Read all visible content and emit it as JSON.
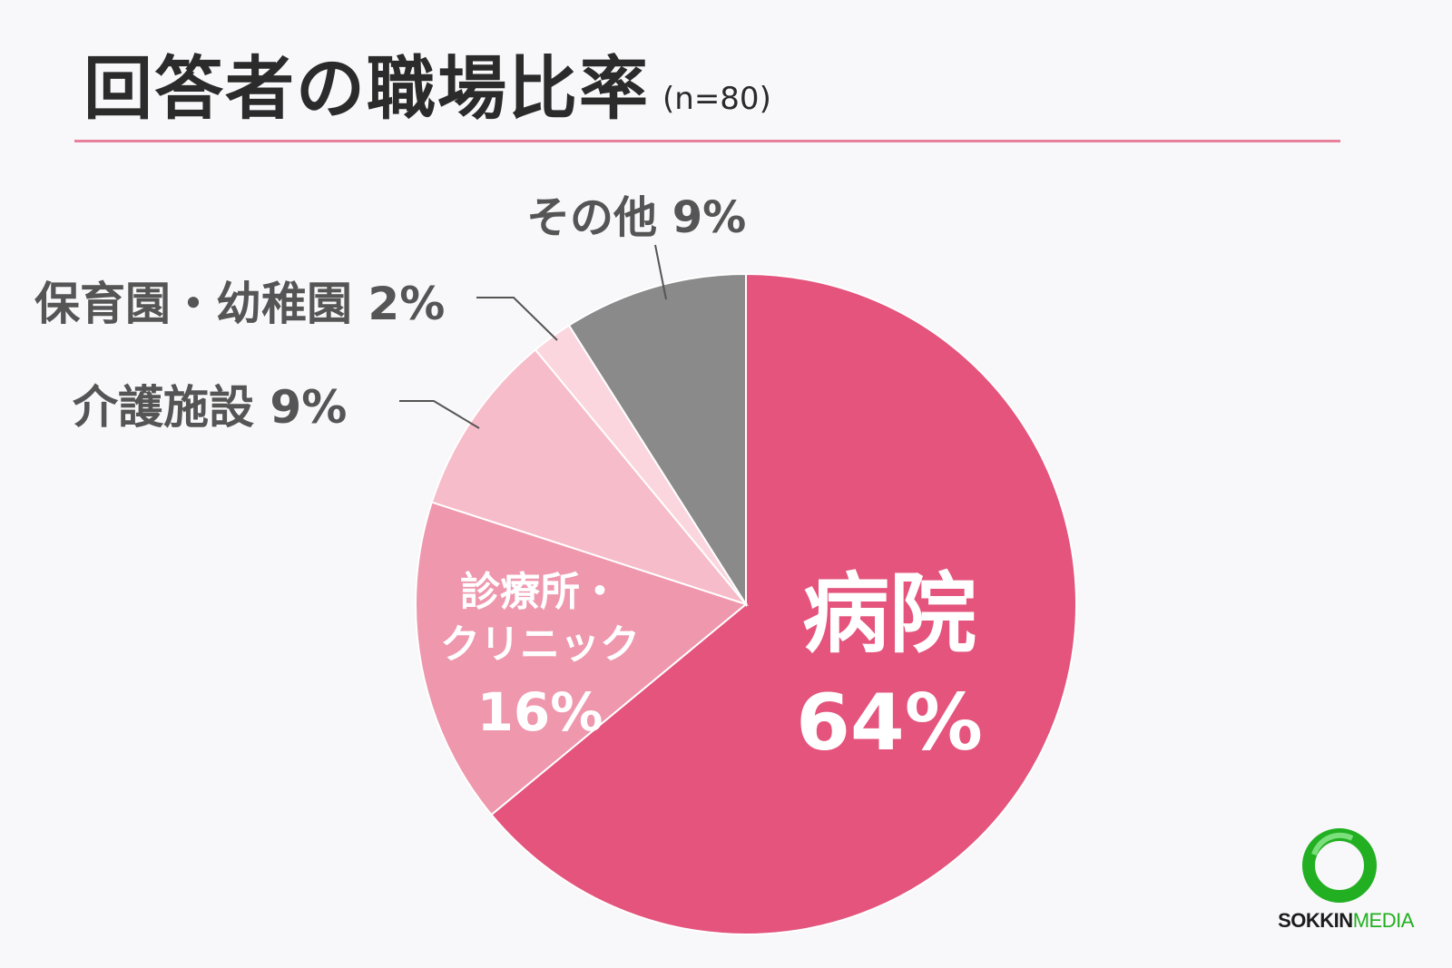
{
  "chart_data": {
    "type": "pie",
    "title": "回答者の職場比率",
    "subtitle": "(n=80)",
    "slices": [
      {
        "lines": [
          "病院",
          "64%"
        ],
        "value": 64,
        "color": "#e4547c"
      },
      {
        "lines": [
          "診療所・",
          "クリニック",
          "16%"
        ],
        "value": 16,
        "color": "#ee97ad"
      },
      {
        "lines": [
          "介護施設 9%"
        ],
        "value": 9,
        "color": "#f7bcc9"
      },
      {
        "lines": [
          "保育園・幼稚園 2%"
        ],
        "value": 2,
        "color": "#fbd6de"
      },
      {
        "lines": [
          "その他 9%"
        ],
        "value": 9,
        "color": "#8a8a8a"
      }
    ]
  },
  "logo": {
    "text1": "SOKKIN",
    "text2": "MEDIA",
    "color": "#22b022"
  }
}
